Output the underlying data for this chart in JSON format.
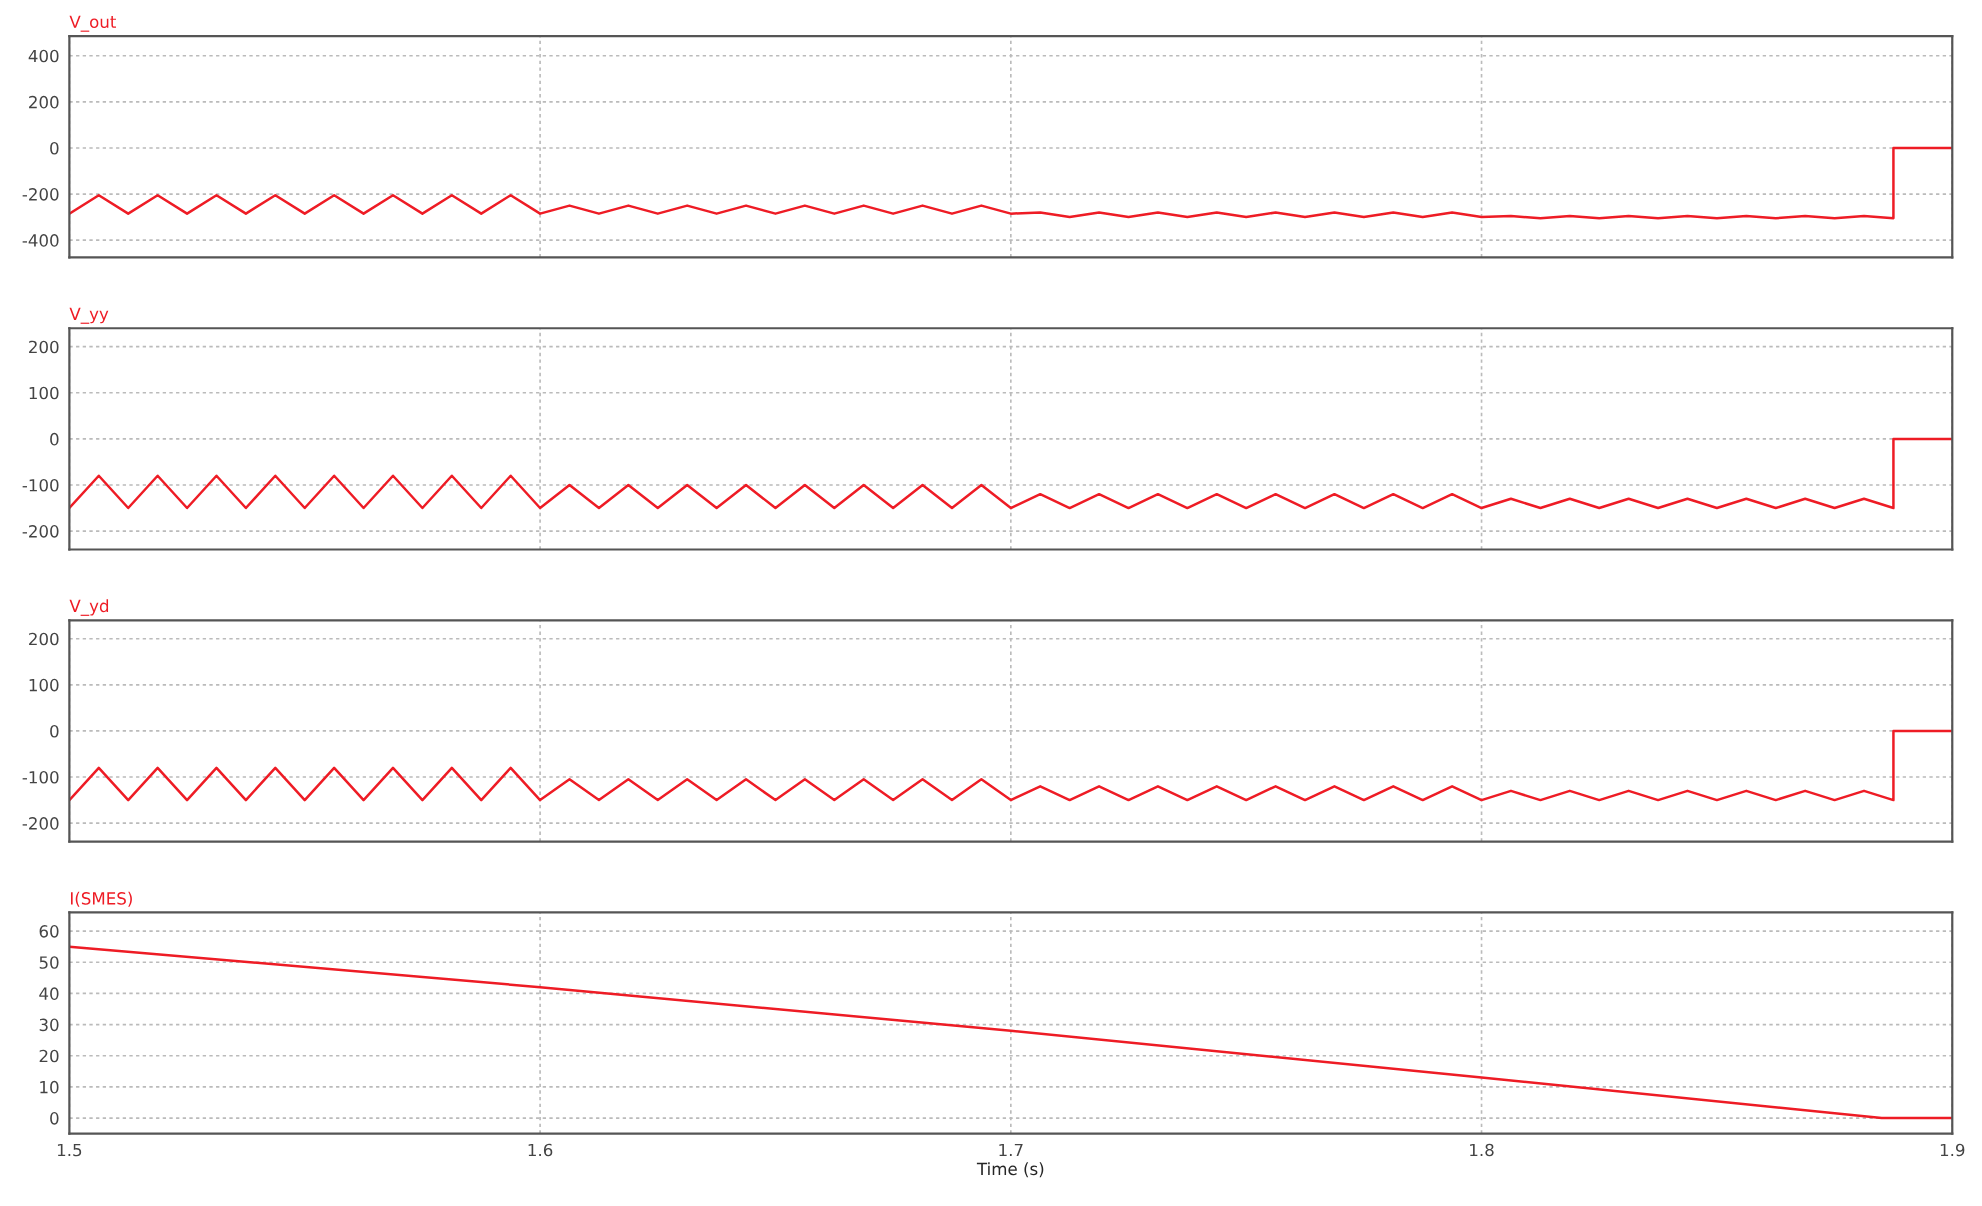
{
  "chart_data": [
    {
      "type": "line",
      "title": "V_out",
      "tick_labels": "y",
      "grid": true,
      "xlim": [
        1.5,
        1.9
      ],
      "xticks": [
        1.5,
        1.6,
        1.7,
        1.8,
        1.9
      ],
      "ylim": [
        -475,
        485
      ],
      "yticks": [
        -400,
        -200,
        0,
        200,
        400
      ],
      "x": [
        1.5,
        1.50625,
        1.5125,
        1.51875,
        1.525,
        1.53125,
        1.5375,
        1.54375,
        1.55,
        1.55625,
        1.5625,
        1.56875,
        1.575,
        1.58125,
        1.5875,
        1.59375,
        1.6,
        1.60625,
        1.6125,
        1.61875,
        1.625,
        1.63125,
        1.6375,
        1.64375,
        1.65,
        1.65625,
        1.6625,
        1.66875,
        1.675,
        1.68125,
        1.6875,
        1.69375,
        1.7,
        1.70625,
        1.7125,
        1.71875,
        1.725,
        1.73125,
        1.7375,
        1.74375,
        1.75,
        1.75625,
        1.7625,
        1.76875,
        1.775,
        1.78125,
        1.7875,
        1.79375,
        1.8,
        1.80625,
        1.8125,
        1.81875,
        1.825,
        1.83125,
        1.8375,
        1.84375,
        1.85,
        1.85625,
        1.8625,
        1.86875,
        1.875,
        1.88125,
        1.8875,
        1.8875,
        1.9
      ],
      "series": [
        {
          "color": "#ee1c25",
          "values": [
            -285,
            -205,
            -285,
            -205,
            -285,
            -205,
            -285,
            -205,
            -285,
            -205,
            -285,
            -205,
            -285,
            -205,
            -285,
            -205,
            -285,
            -250,
            -285,
            -250,
            -285,
            -250,
            -285,
            -250,
            -285,
            -250,
            -285,
            -250,
            -285,
            -250,
            -285,
            -250,
            -285,
            -280,
            -300,
            -280,
            -300,
            -280,
            -300,
            -280,
            -300,
            -280,
            -300,
            -280,
            -300,
            -280,
            -300,
            -280,
            -300,
            -295,
            -305,
            -295,
            -305,
            -295,
            -305,
            -295,
            -305,
            -295,
            -305,
            -295,
            -305,
            -295,
            -305,
            0,
            0
          ]
        }
      ]
    },
    {
      "type": "line",
      "title": "V_yy",
      "tick_labels": "y",
      "grid": true,
      "xlim": [
        1.5,
        1.9
      ],
      "xticks": [
        1.5,
        1.6,
        1.7,
        1.8,
        1.9
      ],
      "ylim": [
        -240,
        240
      ],
      "yticks": [
        -200,
        -100,
        0,
        100,
        200
      ],
      "x": [
        1.5,
        1.50625,
        1.5125,
        1.51875,
        1.525,
        1.53125,
        1.5375,
        1.54375,
        1.55,
        1.55625,
        1.5625,
        1.56875,
        1.575,
        1.58125,
        1.5875,
        1.59375,
        1.6,
        1.60625,
        1.6125,
        1.61875,
        1.625,
        1.63125,
        1.6375,
        1.64375,
        1.65,
        1.65625,
        1.6625,
        1.66875,
        1.675,
        1.68125,
        1.6875,
        1.69375,
        1.7,
        1.70625,
        1.7125,
        1.71875,
        1.725,
        1.73125,
        1.7375,
        1.74375,
        1.75,
        1.75625,
        1.7625,
        1.76875,
        1.775,
        1.78125,
        1.7875,
        1.79375,
        1.8,
        1.80625,
        1.8125,
        1.81875,
        1.825,
        1.83125,
        1.8375,
        1.84375,
        1.85,
        1.85625,
        1.8625,
        1.86875,
        1.875,
        1.88125,
        1.8875,
        1.8875,
        1.9
      ],
      "series": [
        {
          "color": "#ee1c25",
          "values": [
            -150,
            -80,
            -150,
            -80,
            -150,
            -80,
            -150,
            -80,
            -150,
            -80,
            -150,
            -80,
            -150,
            -80,
            -150,
            -80,
            -150,
            -100,
            -150,
            -100,
            -150,
            -100,
            -150,
            -100,
            -150,
            -100,
            -150,
            -100,
            -150,
            -100,
            -150,
            -100,
            -150,
            -120,
            -150,
            -120,
            -150,
            -120,
            -150,
            -120,
            -150,
            -120,
            -150,
            -120,
            -150,
            -120,
            -150,
            -120,
            -150,
            -130,
            -150,
            -130,
            -150,
            -130,
            -150,
            -130,
            -150,
            -130,
            -150,
            -130,
            -150,
            -130,
            -150,
            0,
            0
          ]
        }
      ]
    },
    {
      "type": "line",
      "title": "V_yd",
      "tick_labels": "y",
      "grid": true,
      "xlim": [
        1.5,
        1.9
      ],
      "xticks": [
        1.5,
        1.6,
        1.7,
        1.8,
        1.9
      ],
      "ylim": [
        -240,
        240
      ],
      "yticks": [
        -200,
        -100,
        0,
        100,
        200
      ],
      "x": [
        1.5,
        1.50625,
        1.5125,
        1.51875,
        1.525,
        1.53125,
        1.5375,
        1.54375,
        1.55,
        1.55625,
        1.5625,
        1.56875,
        1.575,
        1.58125,
        1.5875,
        1.59375,
        1.6,
        1.60625,
        1.6125,
        1.61875,
        1.625,
        1.63125,
        1.6375,
        1.64375,
        1.65,
        1.65625,
        1.6625,
        1.66875,
        1.675,
        1.68125,
        1.6875,
        1.69375,
        1.7,
        1.70625,
        1.7125,
        1.71875,
        1.725,
        1.73125,
        1.7375,
        1.74375,
        1.75,
        1.75625,
        1.7625,
        1.76875,
        1.775,
        1.78125,
        1.7875,
        1.79375,
        1.8,
        1.80625,
        1.8125,
        1.81875,
        1.825,
        1.83125,
        1.8375,
        1.84375,
        1.85,
        1.85625,
        1.8625,
        1.86875,
        1.875,
        1.88125,
        1.8875,
        1.8875,
        1.9
      ],
      "series": [
        {
          "color": "#ee1c25",
          "values": [
            -150,
            -80,
            -150,
            -80,
            -150,
            -80,
            -150,
            -80,
            -150,
            -80,
            -150,
            -80,
            -150,
            -80,
            -150,
            -80,
            -150,
            -105,
            -150,
            -105,
            -150,
            -105,
            -150,
            -105,
            -150,
            -105,
            -150,
            -105,
            -150,
            -105,
            -150,
            -105,
            -150,
            -120,
            -150,
            -120,
            -150,
            -120,
            -150,
            -120,
            -150,
            -120,
            -150,
            -120,
            -150,
            -120,
            -150,
            -120,
            -150,
            -130,
            -150,
            -130,
            -150,
            -130,
            -150,
            -130,
            -150,
            -130,
            -150,
            -130,
            -150,
            -130,
            -150,
            0,
            0
          ]
        }
      ]
    },
    {
      "type": "line",
      "title": "I(SMES)",
      "xlabel": "Time (s)",
      "grid": true,
      "xlim": [
        1.5,
        1.9
      ],
      "xticks": [
        1.5,
        1.6,
        1.7,
        1.8,
        1.9
      ],
      "ylim": [
        -5,
        66
      ],
      "yticks": [
        0,
        10,
        20,
        30,
        40,
        50,
        60
      ],
      "x": [
        1.5,
        1.6,
        1.7,
        1.8,
        1.885,
        1.9
      ],
      "series": [
        {
          "color": "#ee1c25",
          "values": [
            55,
            42,
            28,
            13,
            0,
            0
          ]
        }
      ]
    }
  ]
}
